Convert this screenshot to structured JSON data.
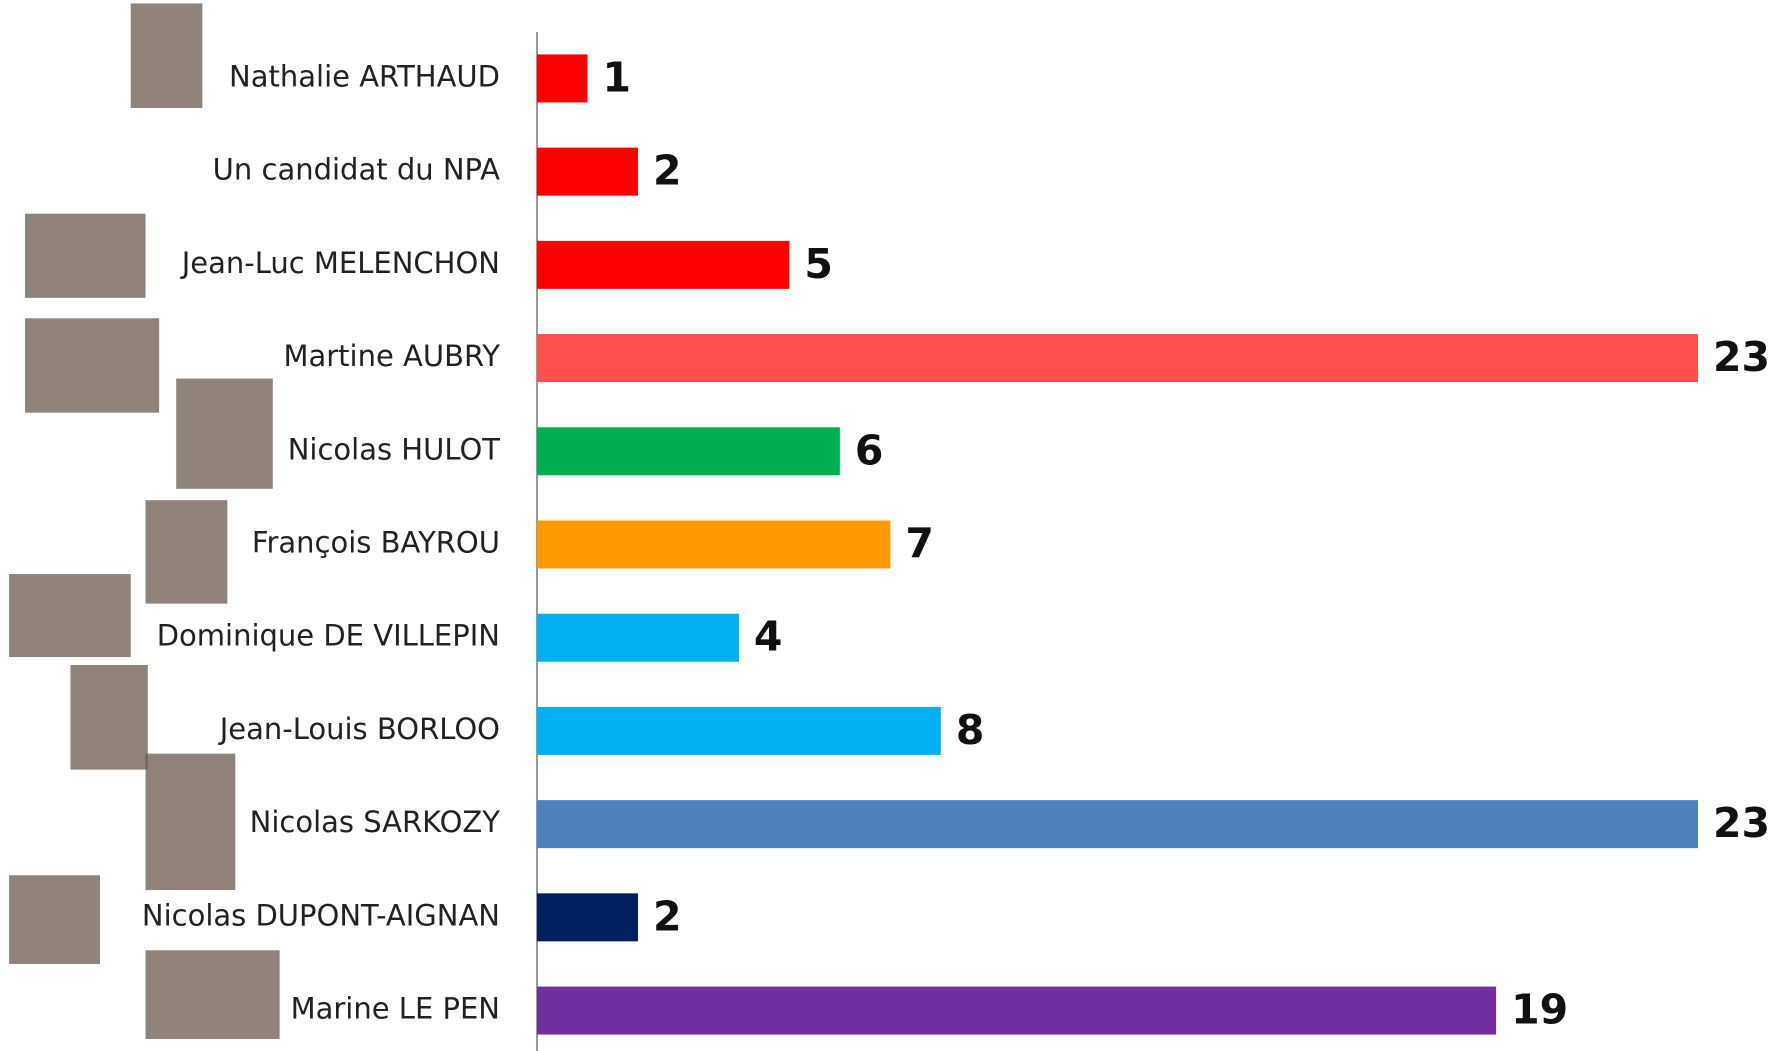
{
  "chart_data": {
    "type": "barh",
    "categories": [
      "Nathalie ARTHAUD",
      "Un candidat du NPA",
      "Jean-Luc MELENCHON",
      "Martine AUBRY",
      "Nicolas HULOT",
      "François BAYROU",
      "Dominique DE VILLEPIN",
      "Jean-Louis BORLOO",
      "Nicolas SARKOZY",
      "Nicolas DUPONT-AIGNAN",
      "Marine LE PEN"
    ],
    "values": [
      1,
      2,
      5,
      23,
      6,
      7,
      4,
      8,
      23,
      2,
      19
    ],
    "colors": [
      "#ff0000",
      "#ff0000",
      "#ff0000",
      "#ff5050",
      "#00b050",
      "#ff9900",
      "#00b0f0",
      "#00b0f0",
      "#4f81bd",
      "#002060",
      "#7030a0"
    ]
  }
}
